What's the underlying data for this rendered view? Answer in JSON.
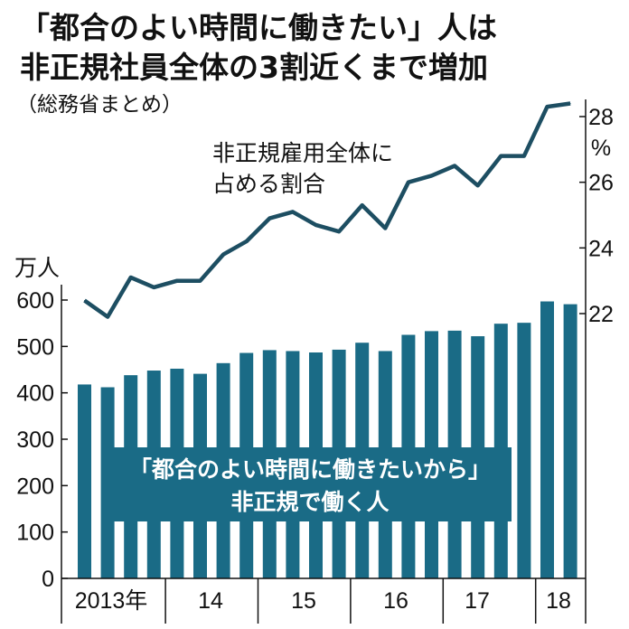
{
  "title_line1": "「都合のよい時間に働きたい」人は",
  "title_line2": "非正規社員全体の3割近くまで増加",
  "subtitle": "（総務省まとめ）",
  "colors": {
    "bar": "#1a6b86",
    "line": "#1d4e62",
    "text": "#111111",
    "background": "#ffffff"
  },
  "chart_data": {
    "type": "bar",
    "x_labels": [
      "2013年",
      "14",
      "15",
      "16",
      "17",
      "18"
    ],
    "left_axis": {
      "unit": "万人",
      "ticks": [
        "600",
        "500",
        "400",
        "300",
        "200",
        "100",
        "0"
      ],
      "ylim": [
        0,
        600
      ]
    },
    "right_axis": {
      "unit": "%",
      "ticks": [
        "28",
        "26",
        "24",
        "22"
      ],
      "ylim": [
        22,
        28
      ]
    },
    "series": [
      {
        "type": "bar",
        "label_line1": "「都合のよい時間に働きたいから」",
        "label_line2": "非正規で働く人",
        "values": [
          418,
          412,
          438,
          448,
          452,
          441,
          464,
          486,
          492,
          490,
          487,
          493,
          508,
          490,
          525,
          533,
          534,
          522,
          549,
          551,
          597,
          591
        ]
      },
      {
        "type": "line",
        "label_line1": "非正規雇用全体に",
        "label_line2": "占める割合",
        "values": [
          22.4,
          21.9,
          23.1,
          22.8,
          23.0,
          23.0,
          23.8,
          24.2,
          24.9,
          25.1,
          24.7,
          24.5,
          25.3,
          24.6,
          26.0,
          26.2,
          26.5,
          25.9,
          26.8,
          26.8,
          28.3,
          28.4
        ]
      }
    ]
  }
}
